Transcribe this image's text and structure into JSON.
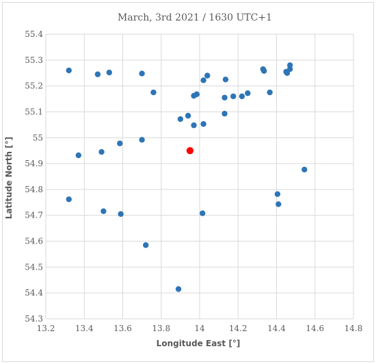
{
  "chart_data": {
    "type": "scatter",
    "title": "March, 3rd 2021 / 1630 UTC+1",
    "xlabel": "Longitude East [°]",
    "ylabel": "Latitude North [°]",
    "xlim": [
      13.2,
      14.8
    ],
    "ylim": [
      54.3,
      55.4
    ],
    "x_ticks": [
      "13.2",
      "13.4",
      "13.6",
      "13.8",
      "14",
      "14.2",
      "14.4",
      "14.6",
      "14.8"
    ],
    "y_ticks": [
      "54.3",
      "54.4",
      "54.5",
      "54.6",
      "54.7",
      "54.8",
      "54.9",
      "55",
      "55.1",
      "55.2",
      "55.3",
      "55.4"
    ],
    "grid": true,
    "legend": "none",
    "colors": {
      "series": "#2e75b6",
      "highlight": "#ff0000",
      "grid": "#d9d9d9",
      "text": "#595959"
    },
    "series": [
      {
        "points": [
          [
            13.32,
            55.26
          ],
          [
            13.47,
            55.245
          ],
          [
            13.53,
            55.252
          ],
          [
            13.7,
            55.248
          ],
          [
            13.76,
            55.175
          ],
          [
            14.02,
            55.222
          ],
          [
            14.04,
            55.24
          ],
          [
            14.135,
            55.225
          ],
          [
            14.13,
            55.155
          ],
          [
            14.175,
            55.16
          ],
          [
            14.22,
            55.16
          ],
          [
            14.25,
            55.172
          ],
          [
            14.33,
            55.265
          ],
          [
            14.335,
            55.258
          ],
          [
            14.365,
            55.175
          ],
          [
            14.45,
            55.255
          ],
          [
            14.455,
            55.25
          ],
          [
            14.47,
            55.265
          ],
          [
            14.47,
            55.28
          ],
          [
            13.97,
            55.162
          ],
          [
            13.985,
            55.168
          ],
          [
            13.94,
            55.085
          ],
          [
            13.9,
            55.072
          ],
          [
            13.97,
            55.048
          ],
          [
            14.02,
            55.053
          ],
          [
            14.13,
            55.093
          ],
          [
            13.7,
            54.992
          ],
          [
            13.585,
            54.978
          ],
          [
            13.49,
            54.945
          ],
          [
            13.37,
            54.932
          ],
          [
            14.545,
            54.877
          ],
          [
            14.405,
            54.782
          ],
          [
            14.41,
            54.743
          ],
          [
            13.32,
            54.762
          ],
          [
            13.5,
            54.716
          ],
          [
            13.59,
            54.705
          ],
          [
            14.015,
            54.708
          ],
          [
            13.72,
            54.585
          ],
          [
            13.89,
            54.415
          ]
        ]
      },
      {
        "points": [
          [
            13.95,
            54.95
          ]
        ]
      }
    ]
  }
}
